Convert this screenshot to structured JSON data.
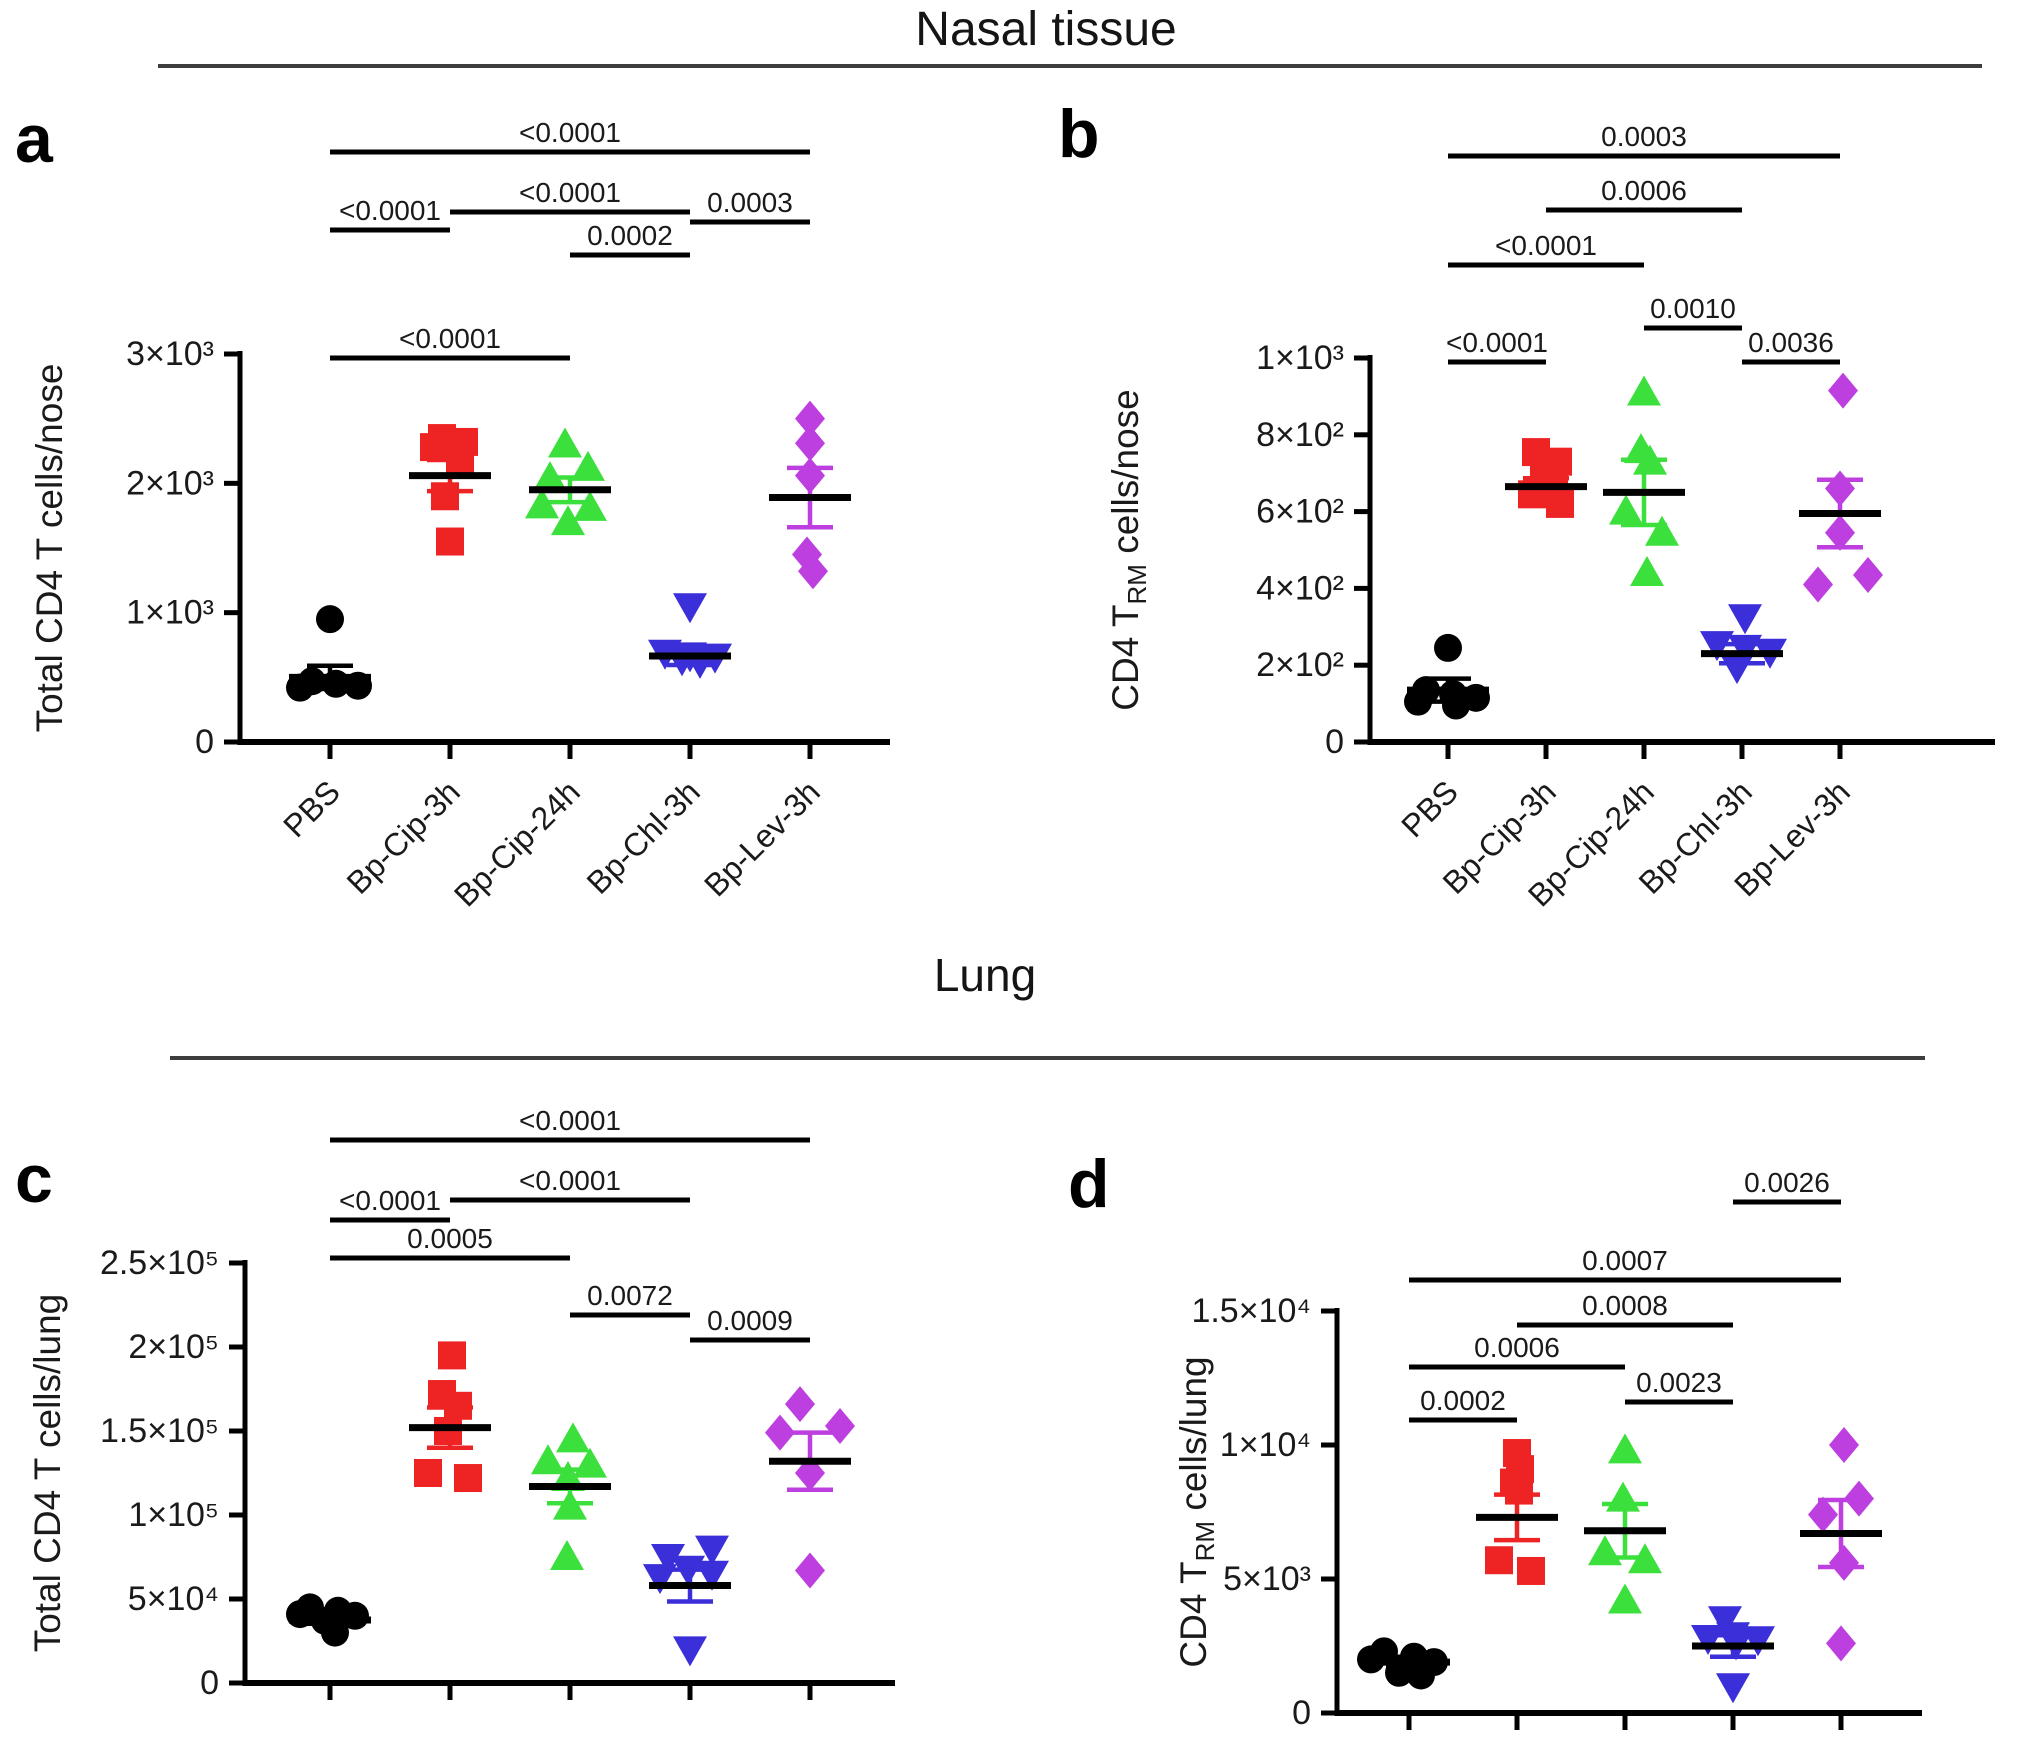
{
  "figure": {
    "sections": [
      {
        "id": "nasal",
        "title": "Nasal tissue"
      },
      {
        "id": "lung",
        "title": "Lung"
      }
    ],
    "panel_letters": {
      "a": "a",
      "b": "b",
      "c": "c",
      "d": "d"
    }
  },
  "groups": [
    "PBS",
    "Bp-Cip-3h",
    "Bp-Cip-24h",
    "Bp-Chl-3h",
    "Bp-Lev-3h"
  ],
  "style": {
    "colors": {
      "PBS": "#000000",
      "Bp-Cip-3h": "#ee2424",
      "Bp-Cip-24h": "#3ce03c",
      "Bp-Chl-3h": "#3a2fd8",
      "Bp-Lev-3h": "#bd3fe0"
    },
    "markers": {
      "PBS": "circle",
      "Bp-Cip-3h": "square",
      "Bp-Cip-24h": "triangle-up",
      "Bp-Chl-3h": "triangle-down",
      "Bp-Lev-3h": "diamond"
    },
    "mean_line_color": "#000000"
  },
  "chart_data": [
    {
      "panel": "a",
      "section": "Nasal tissue",
      "type": "scatter",
      "title": "",
      "xlabel": "",
      "ylabel": {
        "pre": "Total CD4 T",
        "sub": "",
        "post": " cells/nose"
      },
      "ylim": [
        0,
        3000
      ],
      "yticks": [
        {
          "v": 0,
          "label": "0"
        },
        {
          "v": 1000,
          "label": "1×10³"
        },
        {
          "v": 2000,
          "label": "2×10³"
        },
        {
          "v": 3000,
          "label": "3×10³"
        }
      ],
      "categories": [
        "PBS",
        "Bp-Cip-3h",
        "Bp-Cip-24h",
        "Bp-Chl-3h",
        "Bp-Lev-3h"
      ],
      "show_xlabels": true,
      "series": [
        {
          "name": "PBS",
          "values": [
            950,
            470,
            450,
            435,
            420
          ],
          "offsets": [
            0,
            -18,
            6,
            28,
            -30
          ],
          "mean": 500,
          "sem": 90
        },
        {
          "name": "Bp-Cip-3h",
          "values": [
            2350,
            2320,
            2280,
            2160,
            1900,
            1550
          ],
          "offsets": [
            -8,
            14,
            -16,
            10,
            -5,
            0
          ],
          "mean": 2060,
          "sem": 120
        },
        {
          "name": "Bp-Cip-24h",
          "values": [
            2300,
            2120,
            2040,
            1830,
            1810,
            1700
          ],
          "offsets": [
            -5,
            18,
            -20,
            -28,
            20,
            -2
          ],
          "mean": 1950,
          "sem": 95
        },
        {
          "name": "Bp-Chl-3h",
          "values": [
            1050,
            690,
            670,
            660,
            640,
            620
          ],
          "offsets": [
            0,
            -25,
            0,
            25,
            -8,
            10
          ],
          "mean": 665,
          "sem": 70
        },
        {
          "name": "Bp-Lev-3h",
          "values": [
            2500,
            2310,
            2060,
            1450,
            1320
          ],
          "offsets": [
            0,
            0,
            0,
            -3,
            3
          ],
          "mean": 1890,
          "sem": 230
        }
      ],
      "sig_bars": [
        {
          "pair": [
            0,
            4
          ],
          "label": "<0.0001"
        },
        {
          "pair": [
            1,
            3
          ],
          "label": "<0.0001"
        },
        {
          "pair": [
            0,
            1
          ],
          "label": "<0.0001"
        },
        {
          "pair": [
            3,
            4
          ],
          "label": "0.0003"
        },
        {
          "pair": [
            2,
            3
          ],
          "label": "0.0002"
        },
        {
          "pair": [
            0,
            2
          ],
          "label": "<0.0001"
        }
      ]
    },
    {
      "panel": "b",
      "section": "Nasal tissue",
      "type": "scatter",
      "title": "",
      "xlabel": "",
      "ylabel": {
        "pre": "CD4 T",
        "sub": "RM",
        "post": " cells/nose"
      },
      "ylim": [
        0,
        1000
      ],
      "yticks": [
        {
          "v": 0,
          "label": "0"
        },
        {
          "v": 200,
          "label": "2×10²"
        },
        {
          "v": 400,
          "label": "4×10²"
        },
        {
          "v": 600,
          "label": "6×10²"
        },
        {
          "v": 800,
          "label": "8×10²"
        },
        {
          "v": 1000,
          "label": "1×10³"
        }
      ],
      "categories": [
        "PBS",
        "Bp-Cip-3h",
        "Bp-Cip-24h",
        "Bp-Chl-3h",
        "Bp-Lev-3h"
      ],
      "show_xlabels": true,
      "series": [
        {
          "name": "PBS",
          "values": [
            245,
            135,
            125,
            115,
            105,
            95
          ],
          "offsets": [
            0,
            -22,
            5,
            28,
            -30,
            8
          ],
          "mean": 135,
          "sem": 30
        },
        {
          "name": "Bp-Cip-3h",
          "values": [
            755,
            730,
            700,
            665,
            645,
            620
          ],
          "offsets": [
            -10,
            12,
            -2,
            8,
            -14,
            14
          ],
          "mean": 665,
          "sem": 22
        },
        {
          "name": "Bp-Cip-24h",
          "values": [
            910,
            760,
            730,
            600,
            545,
            440
          ],
          "offsets": [
            0,
            -3,
            6,
            -18,
            18,
            3
          ],
          "mean": 650,
          "sem": 85
        },
        {
          "name": "Bp-Chl-3h",
          "values": [
            325,
            255,
            245,
            235,
            195
          ],
          "offsets": [
            3,
            -25,
            3,
            28,
            -5
          ],
          "mean": 230,
          "sem": 25
        },
        {
          "name": "Bp-Lev-3h",
          "values": [
            915,
            660,
            545,
            435,
            410
          ],
          "offsets": [
            3,
            0,
            0,
            28,
            -22
          ],
          "mean": 595,
          "sem": 88
        }
      ],
      "sig_bars": [
        {
          "pair": [
            0,
            4
          ],
          "label": "0.0003"
        },
        {
          "pair": [
            1,
            3
          ],
          "label": "0.0006"
        },
        {
          "pair": [
            0,
            2
          ],
          "label": "<0.0001"
        },
        {
          "pair": [
            2,
            3
          ],
          "label": "0.0010"
        },
        {
          "pair": [
            0,
            1
          ],
          "label": "<0.0001"
        },
        {
          "pair": [
            3,
            4
          ],
          "label": "0.0036"
        }
      ]
    },
    {
      "panel": "c",
      "section": "Lung",
      "type": "scatter",
      "title": "",
      "xlabel": "",
      "ylabel": {
        "pre": "Total CD4 T",
        "sub": "",
        "post": " cells/lung"
      },
      "ylim": [
        0,
        250000
      ],
      "yticks": [
        {
          "v": 0,
          "label": "0"
        },
        {
          "v": 50000,
          "label": "5×10⁴"
        },
        {
          "v": 100000,
          "label": "1×10⁵"
        },
        {
          "v": 150000,
          "label": "1.5×10⁵"
        },
        {
          "v": 200000,
          "label": "2×10⁵"
        },
        {
          "v": 250000,
          "label": "2.5×10⁵"
        }
      ],
      "categories": [
        "PBS",
        "Bp-Cip-3h",
        "Bp-Cip-24h",
        "Bp-Chl-3h",
        "Bp-Lev-3h"
      ],
      "show_xlabels": false,
      "series": [
        {
          "name": "PBS",
          "values": [
            45000,
            43000,
            41000,
            40000,
            37000,
            30000
          ],
          "offsets": [
            -20,
            8,
            -30,
            25,
            -5,
            5
          ],
          "mean": 37500,
          "sem": 2200
        },
        {
          "name": "Bp-Cip-3h",
          "values": [
            195000,
            172000,
            165000,
            150000,
            125000,
            122000
          ],
          "offsets": [
            2,
            -8,
            8,
            -2,
            -22,
            18
          ],
          "mean": 152000,
          "sem": 12000
        },
        {
          "name": "Bp-Cip-24h",
          "values": [
            145000,
            132000,
            130000,
            122000,
            105000,
            75000
          ],
          "offsets": [
            3,
            -22,
            20,
            -2,
            0,
            -3
          ],
          "mean": 117000,
          "sem": 10000
        },
        {
          "name": "Bp-Chl-3h",
          "values": [
            80000,
            75000,
            68000,
            65000,
            63000,
            20000
          ],
          "offsets": [
            22,
            -22,
            -2,
            22,
            -30,
            0
          ],
          "mean": 58000,
          "sem": 9500
        },
        {
          "name": "Bp-Lev-3h",
          "values": [
            166000,
            153000,
            149000,
            125000,
            67000
          ],
          "offsets": [
            -10,
            30,
            -30,
            0,
            0
          ],
          "mean": 132000,
          "sem": 17000
        }
      ],
      "sig_bars": [
        {
          "pair": [
            0,
            4
          ],
          "label": "<0.0001"
        },
        {
          "pair": [
            1,
            3
          ],
          "label": "<0.0001"
        },
        {
          "pair": [
            0,
            1
          ],
          "label": "<0.0001"
        },
        {
          "pair": [
            0,
            2
          ],
          "label": "0.0005"
        },
        {
          "pair": [
            2,
            3
          ],
          "label": "0.0072"
        },
        {
          "pair": [
            3,
            4
          ],
          "label": "0.0009"
        }
      ]
    },
    {
      "panel": "d",
      "section": "Lung",
      "type": "scatter",
      "title": "",
      "xlabel": "",
      "ylabel": {
        "pre": "CD4 T",
        "sub": "RM",
        "post": " cells/lung"
      },
      "ylim": [
        0,
        15000
      ],
      "yticks": [
        {
          "v": 0,
          "label": "0"
        },
        {
          "v": 5000,
          "label": "5×10³"
        },
        {
          "v": 10000,
          "label": "1×10⁴"
        },
        {
          "v": 15000,
          "label": "1.5×10⁴"
        }
      ],
      "categories": [
        "PBS",
        "Bp-Cip-3h",
        "Bp-Cip-24h",
        "Bp-Chl-3h",
        "Bp-Lev-3h"
      ],
      "show_xlabels": false,
      "series": [
        {
          "name": "PBS",
          "values": [
            2300,
            2100,
            2000,
            1900,
            1500,
            1400
          ],
          "offsets": [
            -25,
            5,
            -38,
            25,
            -10,
            12
          ],
          "mean": 1900,
          "sem": 200
        },
        {
          "name": "Bp-Cip-3h",
          "values": [
            9700,
            9100,
            8600,
            8300,
            5700,
            5300
          ],
          "offsets": [
            0,
            3,
            -3,
            2,
            -18,
            14
          ],
          "mean": 7300,
          "sem": 850
        },
        {
          "name": "Bp-Cip-24h",
          "values": [
            9800,
            8000,
            6000,
            5700,
            4200
          ],
          "offsets": [
            0,
            -2,
            -20,
            20,
            0
          ],
          "mean": 6800,
          "sem": 1000
        },
        {
          "name": "Bp-Chl-3h",
          "values": [
            3500,
            2900,
            2800,
            2750,
            2600,
            1000
          ],
          "offsets": [
            -8,
            0,
            -25,
            25,
            3,
            0
          ],
          "mean": 2500,
          "sem": 400
        },
        {
          "name": "Bp-Lev-3h",
          "values": [
            10000,
            8000,
            7400,
            5600,
            2600
          ],
          "offsets": [
            3,
            18,
            -18,
            3,
            0
          ],
          "mean": 6700,
          "sem": 1250
        }
      ],
      "sig_bars": [
        {
          "pair": [
            3,
            4
          ],
          "label": "0.0026"
        },
        {
          "pair": [
            0,
            4
          ],
          "label": "0.0007"
        },
        {
          "pair": [
            1,
            3
          ],
          "label": "0.0008"
        },
        {
          "pair": [
            0,
            2
          ],
          "label": "0.0006"
        },
        {
          "pair": [
            2,
            3
          ],
          "label": "0.0023"
        },
        {
          "pair": [
            0,
            1
          ],
          "label": "0.0002"
        }
      ]
    }
  ]
}
